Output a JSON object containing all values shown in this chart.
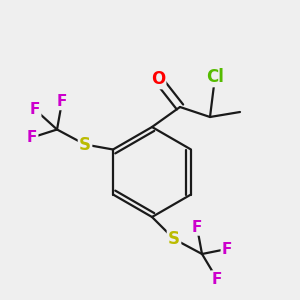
{
  "background_color": "#efefef",
  "figsize": [
    3.0,
    3.0
  ],
  "dpi": 100,
  "bond_color": "#1a1a1a",
  "bond_lw": 1.6,
  "atom_colors": {
    "O": "#ff0000",
    "S": "#bbbb00",
    "Cl": "#55bb00",
    "F": "#cc00cc"
  },
  "atom_fontsizes": {
    "O": 12,
    "S": 12,
    "Cl": 12,
    "F": 11
  }
}
